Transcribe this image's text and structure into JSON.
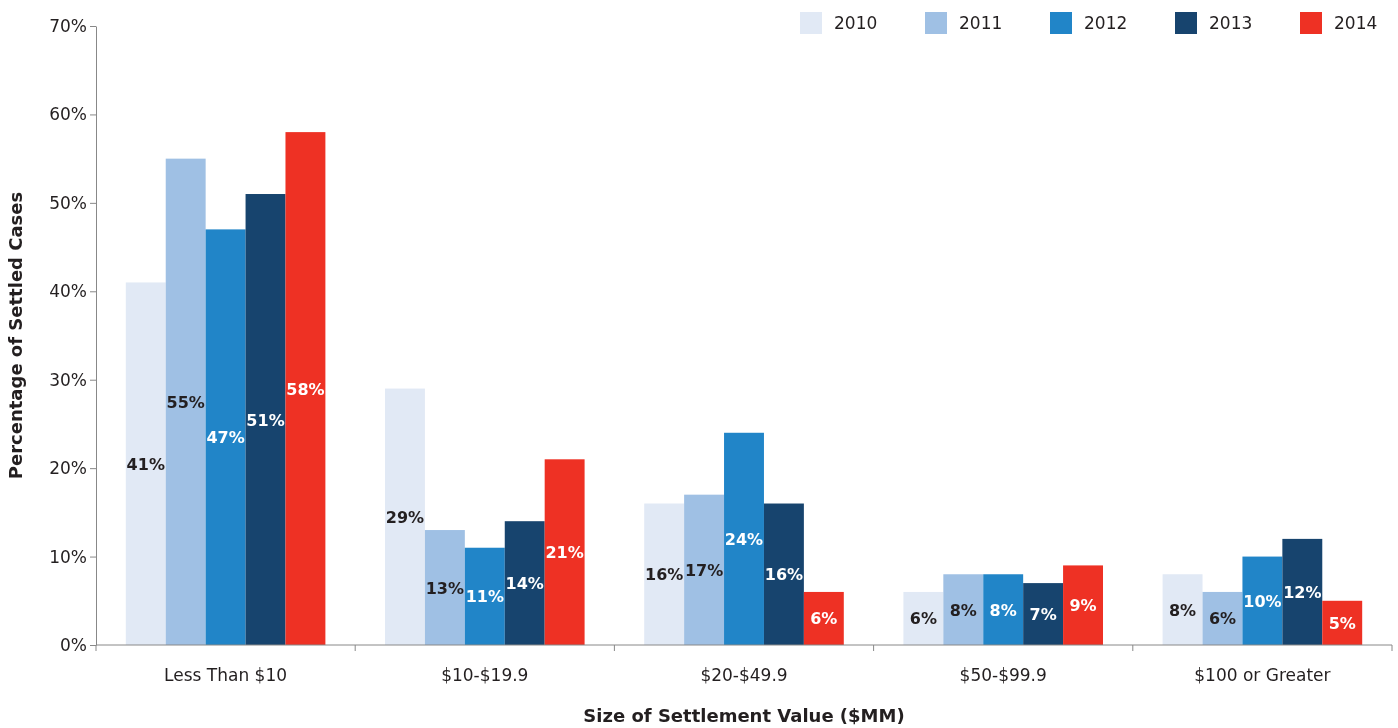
{
  "chart_data": {
    "type": "bar",
    "xlabel": "Size of Settlement Value ($MM)",
    "ylabel": "Percentage of Settled Cases",
    "categories": [
      "Less Than $10",
      "$10-$19.9",
      "$20-$49.9",
      "$50-$99.9",
      "$100 or Greater"
    ],
    "series": [
      {
        "name": "2010",
        "color": "#e1e9f5",
        "values": [
          41,
          29,
          16,
          6,
          8
        ],
        "value_labels": [
          "41%",
          "29%",
          "16%",
          "6%",
          "8%"
        ]
      },
      {
        "name": "2011",
        "color": "#9fc0e4",
        "values": [
          55,
          13,
          17,
          8,
          6
        ],
        "value_labels": [
          "55%",
          "13%",
          "17%",
          "8%",
          "6%"
        ]
      },
      {
        "name": "2012",
        "color": "#2185c8",
        "values": [
          47,
          11,
          24,
          8,
          10
        ],
        "value_labels": [
          "47%",
          "11%",
          "24%",
          "8%",
          "10%"
        ]
      },
      {
        "name": "2013",
        "color": "#17446e",
        "values": [
          51,
          14,
          16,
          7,
          12
        ],
        "value_labels": [
          "51%",
          "14%",
          "16%",
          "7%",
          "12%"
        ]
      },
      {
        "name": "2014",
        "color": "#ee3124",
        "values": [
          58,
          21,
          6,
          9,
          5
        ],
        "value_labels": [
          "58%",
          "21%",
          "6%",
          "9%",
          "5%"
        ]
      }
    ],
    "ylim": [
      0,
      70
    ],
    "yticks": [
      {
        "value": 0,
        "label": "0%"
      },
      {
        "value": 10,
        "label": "10%"
      },
      {
        "value": 20,
        "label": "20%"
      },
      {
        "value": 30,
        "label": "30%"
      },
      {
        "value": 40,
        "label": "40%"
      },
      {
        "value": 50,
        "label": "50%"
      },
      {
        "value": 60,
        "label": "60%"
      },
      {
        "value": 70,
        "label": "70%"
      }
    ],
    "legend": "top right",
    "grid": false
  }
}
